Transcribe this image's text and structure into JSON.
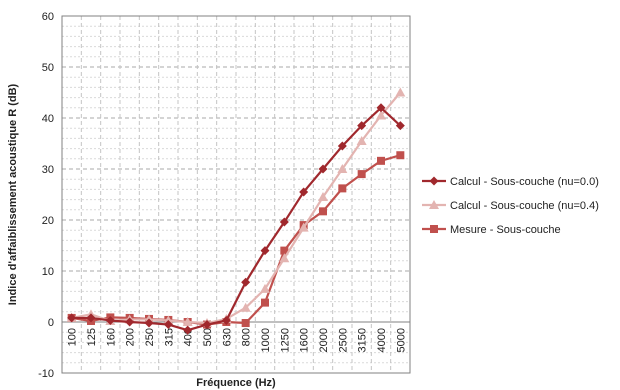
{
  "chart_data": {
    "type": "line",
    "title": "",
    "xlabel": "Fréquence (Hz)",
    "ylabel": "Indice d'affaiblissement acoustique R (dB)",
    "ylim": [
      -10,
      60
    ],
    "y_ticks": [
      -10,
      0,
      10,
      20,
      30,
      40,
      50,
      60
    ],
    "grid": true,
    "legend_position": "right",
    "categories": [
      "100",
      "125",
      "160",
      "200",
      "250",
      "315",
      "400",
      "500",
      "630",
      "800",
      "1000",
      "1250",
      "1600",
      "2000",
      "2500",
      "3150",
      "4000",
      "5000"
    ],
    "series": [
      {
        "name": "Calcul - Sous-couche (nu=0.0)",
        "color": "#a0282d",
        "marker": "diamond",
        "values": [
          0.8,
          0.8,
          0.3,
          0.0,
          -0.2,
          -0.5,
          -1.6,
          -0.5,
          0.3,
          7.8,
          14.0,
          19.6,
          25.5,
          30.0,
          34.5,
          38.5,
          42.0,
          38.5
        ]
      },
      {
        "name": "Calcul - Sous-couche (nu=0.4)",
        "color": "#e3b4b1",
        "marker": "triangle",
        "values": [
          0.8,
          1.5,
          0.2,
          0.5,
          0.5,
          0.3,
          0.0,
          -0.2,
          0.6,
          2.8,
          6.5,
          12.5,
          18.5,
          24.5,
          30.0,
          35.5,
          40.5,
          45.0
        ]
      },
      {
        "name": "Mesure - Sous-couche",
        "color": "#c0504d",
        "marker": "square",
        "values": [
          0.8,
          0.2,
          0.9,
          0.8,
          0.6,
          0.4,
          0.0,
          -0.5,
          0.0,
          -0.2,
          3.8,
          14.0,
          19.0,
          21.7,
          26.2,
          29.0,
          31.6,
          32.7
        ]
      }
    ]
  }
}
